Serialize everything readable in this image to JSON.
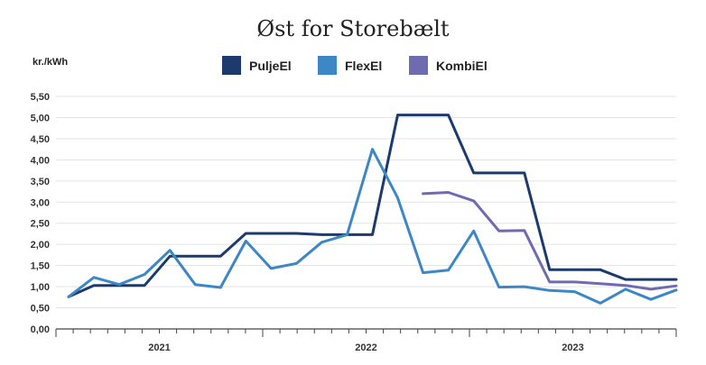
{
  "chart_data": {
    "type": "line",
    "title": "Øst for Storebælt",
    "ylabel": "kr./kWh",
    "ylim": [
      0,
      5.5
    ],
    "yticks": [
      "0,00",
      "0,50",
      "1,00",
      "1,50",
      "2,00",
      "2,50",
      "3,00",
      "3,50",
      "4,00",
      "4,50",
      "5,00",
      "5,50"
    ],
    "year_labels": [
      {
        "label": "2021",
        "start": 0,
        "end": 12
      },
      {
        "label": "2022",
        "start": 12,
        "end": 24
      },
      {
        "label": "2023",
        "start": 24,
        "end": 36
      }
    ],
    "x_count": 25,
    "legend_position": "top",
    "grid": true,
    "series": [
      {
        "name": "PuljeEl",
        "color": "#1c3a6e",
        "values": [
          0.76,
          1.03,
          1.03,
          1.03,
          1.72,
          1.72,
          1.72,
          2.26,
          2.26,
          2.26,
          2.23,
          2.23,
          2.23,
          5.06,
          5.06,
          5.06,
          3.69,
          3.69,
          3.69,
          1.4,
          1.4,
          1.4,
          1.17,
          1.17,
          1.17
        ]
      },
      {
        "name": "FlexEl",
        "color": "#3d87c6",
        "values": [
          0.76,
          1.22,
          1.05,
          1.29,
          1.86,
          1.05,
          0.98,
          2.08,
          1.43,
          1.55,
          2.05,
          2.23,
          4.25,
          3.1,
          1.33,
          1.39,
          2.32,
          0.99,
          1.0,
          0.91,
          0.88,
          0.61,
          0.94,
          0.7,
          0.92
        ]
      },
      {
        "name": "KombiEl",
        "color": "#6f6bb0",
        "start_index": 14,
        "values": [
          3.2,
          3.23,
          3.03,
          2.32,
          2.33,
          1.11,
          1.11,
          1.07,
          1.03,
          0.94,
          1.02
        ]
      }
    ]
  }
}
